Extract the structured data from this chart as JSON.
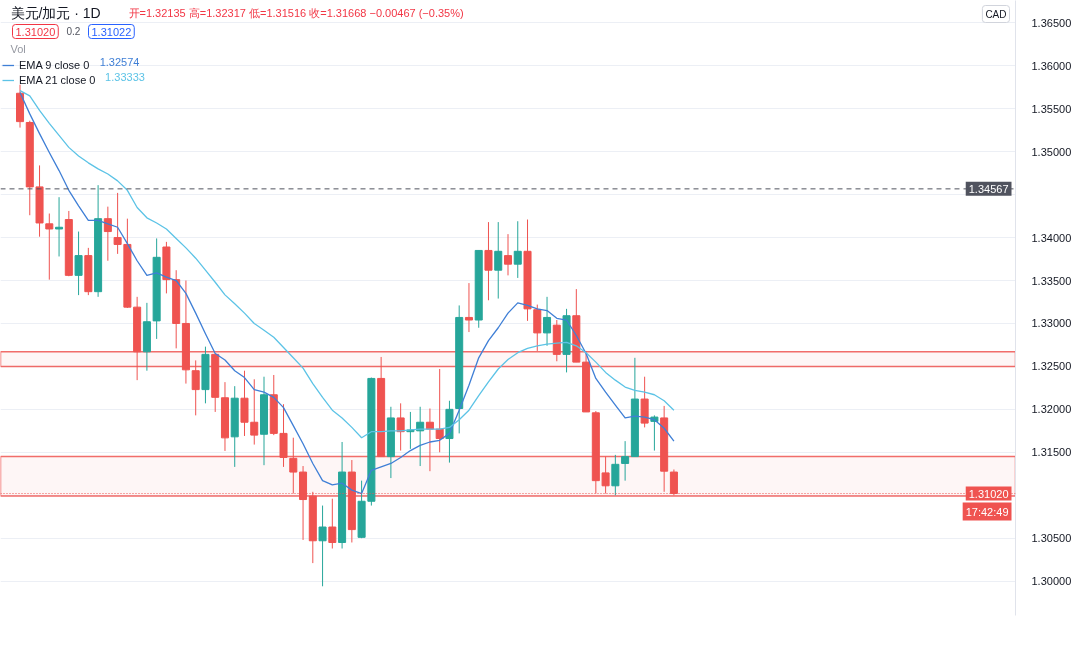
{
  "chart_data": {
    "type": "candlestick",
    "title": "美元/加元 · 1D",
    "subtitle": "开=1.32135  高=1.32317  低=1.31516  收=1.31668  −0.00467 (−0.35%)",
    "ylabel": "CAD",
    "categories": [
      null,
      null,
      null,
      null,
      null,
      null,
      null,
      null,
      null,
      null,
      null,
      null,
      null,
      null,
      null,
      null,
      null,
      null,
      null,
      null,
      null,
      null,
      null,
      null,
      null,
      null,
      null,
      null,
      null,
      null,
      null,
      null,
      null,
      null,
      null,
      null,
      null,
      null,
      null,
      null,
      null,
      null,
      null,
      null,
      null,
      null,
      null,
      null,
      null,
      null,
      null,
      null,
      null,
      null,
      null,
      null,
      null,
      null,
      null,
      null,
      null,
      null,
      null,
      null,
      null,
      null,
      null,
      null
    ],
    "ohlc": [
      [
        1.3568,
        1.3578,
        1.3528,
        1.3535
      ],
      [
        1.3534,
        1.3536,
        1.3426,
        1.3459
      ],
      [
        1.3459,
        1.3484,
        1.3401,
        1.3417
      ],
      [
        1.3416,
        1.3428,
        1.3351,
        1.341
      ],
      [
        1.341,
        1.3447,
        1.3378,
        1.3412
      ],
      [
        1.3421,
        1.3431,
        1.3355,
        1.3356
      ],
      [
        1.3356,
        1.3407,
        1.3333,
        1.3379
      ],
      [
        1.3379,
        1.3388,
        1.3333,
        1.3337
      ],
      [
        1.3337,
        1.3461,
        1.3331,
        1.3422
      ],
      [
        1.3422,
        1.3436,
        1.3373,
        1.3407
      ],
      [
        1.34,
        1.3452,
        1.3381,
        1.3392
      ],
      [
        1.3392,
        1.3422,
        1.3318,
        1.3319
      ],
      [
        1.3319,
        1.3331,
        1.3234,
        1.3267
      ],
      [
        1.3267,
        1.3324,
        1.3245,
        1.3302
      ],
      [
        1.3303,
        1.3399,
        1.3282,
        1.3377
      ],
      [
        1.3389,
        1.3395,
        1.3335,
        1.3351
      ],
      [
        1.3351,
        1.3362,
        1.3271,
        1.33
      ],
      [
        1.33,
        1.335,
        1.323,
        1.3246
      ],
      [
        1.3245,
        1.3257,
        1.3193,
        1.3223
      ],
      [
        1.3223,
        1.3273,
        1.3207,
        1.3264
      ],
      [
        1.3264,
        1.3265,
        1.3197,
        1.3214
      ],
      [
        1.32135,
        1.32317,
        1.31516,
        1.31668
      ],
      [
        1.3168,
        1.3227,
        1.3133,
        1.3213
      ],
      [
        1.3213,
        1.3245,
        1.3169,
        1.3185
      ],
      [
        1.3185,
        1.3235,
        1.3159,
        1.317
      ],
      [
        1.3171,
        1.3238,
        1.3135,
        1.3217
      ],
      [
        1.3217,
        1.324,
        1.317,
        1.3172
      ],
      [
        1.3172,
        1.3206,
        1.3133,
        1.3144
      ],
      [
        1.3143,
        1.3167,
        1.3102,
        1.3127
      ],
      [
        1.3127,
        1.3134,
        1.3048,
        1.3095
      ],
      [
        1.3099,
        1.3104,
        1.3021,
        1.3047
      ],
      [
        1.3047,
        1.3088,
        1.2994,
        1.3063
      ],
      [
        1.3063,
        1.3096,
        1.3038,
        1.3045
      ],
      [
        1.3045,
        1.3162,
        1.3038,
        1.3127
      ],
      [
        1.3127,
        1.3141,
        1.3045,
        1.306
      ],
      [
        1.3051,
        1.3117,
        1.305,
        1.3093
      ],
      [
        1.3093,
        1.3237,
        1.3088,
        1.3236
      ],
      [
        1.3236,
        1.3261,
        1.3145,
        1.3145
      ],
      [
        1.3145,
        1.3203,
        1.312,
        1.319
      ],
      [
        1.319,
        1.3207,
        1.3152,
        1.3174
      ],
      [
        1.3174,
        1.3197,
        1.3154,
        1.3176
      ],
      [
        1.3175,
        1.3203,
        1.3134,
        1.3185
      ],
      [
        1.3185,
        1.3201,
        1.3128,
        1.3177
      ],
      [
        1.3177,
        1.3247,
        1.315,
        1.3166
      ],
      [
        1.3166,
        1.321,
        1.3138,
        1.32
      ],
      [
        1.3201,
        1.3321,
        1.3172,
        1.3307
      ],
      [
        1.3307,
        1.3347,
        1.329,
        1.3304
      ],
      [
        1.3304,
        1.3385,
        1.3295,
        1.3385
      ],
      [
        1.3385,
        1.3418,
        1.3327,
        1.3362
      ],
      [
        1.3362,
        1.3418,
        1.3329,
        1.3384
      ],
      [
        1.3379,
        1.3404,
        1.3356,
        1.3369
      ],
      [
        1.3369,
        1.3419,
        1.3353,
        1.3384
      ],
      [
        1.3384,
        1.3421,
        1.3303,
        1.3317
      ],
      [
        1.3316,
        1.3322,
        1.3268,
        1.3289
      ],
      [
        1.3289,
        1.3331,
        1.3274,
        1.3307
      ],
      [
        1.3298,
        1.3304,
        1.3256,
        1.3264
      ],
      [
        1.3264,
        1.3317,
        1.3243,
        1.3309
      ],
      [
        1.3309,
        1.334,
        1.3255,
        1.3255
      ],
      [
        1.3255,
        1.3268,
        1.3197,
        1.3197
      ],
      [
        1.3196,
        1.3198,
        1.3102,
        1.3117
      ],
      [
        1.3126,
        1.3145,
        1.3102,
        1.3111
      ],
      [
        1.3111,
        1.3147,
        1.31,
        1.3136
      ],
      [
        1.3137,
        1.3163,
        1.3117,
        1.3145
      ],
      [
        1.3145,
        1.326,
        1.3145,
        1.3212
      ],
      [
        1.3212,
        1.3238,
        1.3179,
        1.3184
      ],
      [
        1.3186,
        1.3193,
        1.3152,
        1.3191
      ],
      [
        1.319,
        1.3204,
        1.3104,
        1.3128
      ],
      [
        1.3127,
        1.313,
        1.31,
        1.3102
      ]
    ],
    "colors": [
      "#ef5350",
      "#ef5350",
      "#ef5350",
      "#ef5350",
      "#26a69a",
      "#ef5350",
      "#26a69a",
      "#ef5350",
      "#26a69a",
      "#ef5350",
      "#ef5350",
      "#ef5350",
      "#ef5350",
      "#26a69a",
      "#26a69a",
      "#ef5350",
      "#ef5350",
      "#ef5350",
      "#ef5350",
      "#26a69a",
      "#ef5350",
      "#ef5350",
      "#26a69a",
      "#ef5350",
      "#ef5350",
      "#26a69a",
      "#ef5350",
      "#ef5350",
      "#ef5350",
      "#ef5350",
      "#ef5350",
      "#26a69a",
      "#ef5350",
      "#26a69a",
      "#ef5350",
      "#26a69a",
      "#26a69a",
      "#ef5350",
      "#26a69a",
      "#ef5350",
      "#26a69a",
      "#26a69a",
      "#ef5350",
      "#ef5350",
      "#26a69a",
      "#26a69a",
      "#ef5350",
      "#26a69a",
      "#ef5350",
      "#26a69a",
      "#ef5350",
      "#26a69a",
      "#ef5350",
      "#ef5350",
      "#26a69a",
      "#ef5350",
      "#26a69a",
      "#ef5350",
      "#ef5350",
      "#ef5350",
      "#ef5350",
      "#26a69a",
      "#26a69a",
      "#26a69a",
      "#ef5350",
      "#26a69a",
      "#ef5350",
      "#ef5350"
    ],
    "series": [
      {
        "name": "EMA 9 close 0",
        "type": "line",
        "color": "#3f7fd6",
        "values": [
          1.3569,
          1.3544,
          1.3521,
          1.3499,
          1.3478,
          1.3455,
          1.3437,
          1.342,
          1.342,
          1.3416,
          1.3412,
          1.3393,
          1.3373,
          1.3356,
          1.3359,
          1.3354,
          1.335,
          1.3335,
          1.3312,
          1.3288,
          1.3265,
          1.32574,
          1.3245,
          1.3237,
          1.3223,
          1.322,
          1.3214,
          1.3202,
          1.3181,
          1.316,
          1.3137,
          1.3117,
          1.3112,
          1.3114,
          1.3106,
          1.3102,
          1.3129,
          1.3133,
          1.3137,
          1.3144,
          1.3152,
          1.3158,
          1.3162,
          1.3164,
          1.3172,
          1.3199,
          1.3228,
          1.326,
          1.328,
          1.3295,
          1.3312,
          1.3324,
          1.3321,
          1.3317,
          1.3315,
          1.3306,
          1.3304,
          1.3286,
          1.3265,
          1.3236,
          1.322,
          1.3205,
          1.319,
          1.3192,
          1.3191,
          1.3188,
          1.3178,
          1.3163
        ]
      },
      {
        "name": "EMA 21 close 0",
        "type": "line",
        "color": "#5cc3e6",
        "values": [
          1.3571,
          1.3565,
          1.3548,
          1.3533,
          1.3519,
          1.3505,
          1.3495,
          1.3487,
          1.348,
          1.3474,
          1.3466,
          1.3455,
          1.3435,
          1.3423,
          1.3417,
          1.341,
          1.3399,
          1.3388,
          1.3376,
          1.3362,
          1.3348,
          1.33333,
          1.3323,
          1.3312,
          1.33,
          1.3292,
          1.3284,
          1.3272,
          1.326,
          1.3248,
          1.323,
          1.3214,
          1.3199,
          1.319,
          1.3179,
          1.3167,
          1.3174,
          1.3174,
          1.3175,
          1.3175,
          1.3176,
          1.3177,
          1.3177,
          1.3177,
          1.3179,
          1.3188,
          1.3199,
          1.3216,
          1.3232,
          1.3247,
          1.3258,
          1.3266,
          1.3271,
          1.3274,
          1.3276,
          1.3277,
          1.3278,
          1.3274,
          1.3266,
          1.3255,
          1.3243,
          1.3234,
          1.3226,
          1.3222,
          1.322,
          1.3217,
          1.321,
          1.3199
        ]
      }
    ],
    "ylim": [
      1.296,
      1.3676
    ],
    "yticks": [
      {
        "value": 1.3,
        "label": "1.30000"
      },
      {
        "value": 1.305,
        "label": "1.30500"
      },
      {
        "value": 1.31,
        "label": null
      },
      {
        "value": 1.315,
        "label": "1.31500"
      },
      {
        "value": 1.32,
        "label": "1.32000"
      },
      {
        "value": 1.325,
        "label": "1.32500"
      },
      {
        "value": 1.33,
        "label": "1.33000"
      },
      {
        "value": 1.335,
        "label": "1.33500"
      },
      {
        "value": 1.34,
        "label": "1.34000"
      },
      {
        "value": 1.345,
        "label": null
      },
      {
        "value": 1.35,
        "label": "1.35000"
      },
      {
        "value": 1.355,
        "label": "1.35500"
      },
      {
        "value": 1.36,
        "label": "1.36000"
      },
      {
        "value": 1.365,
        "label": "1.36500"
      }
    ],
    "ref_lines": [
      {
        "axis": "y",
        "value": 1.34567,
        "label": "1.34567",
        "color": "#50535e",
        "line_style": "dashed"
      },
      {
        "axis": "y",
        "value": 1.3102,
        "label": "1.31020",
        "color": "#ef5350",
        "line_style": "dotted"
      }
    ],
    "bands": [
      {
        "axis": "y",
        "from": 1.325,
        "to": 1.3267,
        "color": "#ef5350"
      },
      {
        "axis": "y",
        "from": 1.3099,
        "to": 1.3145,
        "color": "#ef5350"
      }
    ],
    "annotations": [
      "1.31020",
      "0.2",
      "1.31022",
      "Vol",
      "1.32574",
      "1.33333",
      "17:42:49"
    ],
    "legend": "top left",
    "grid": "y",
    "tick_labels": "y"
  }
}
